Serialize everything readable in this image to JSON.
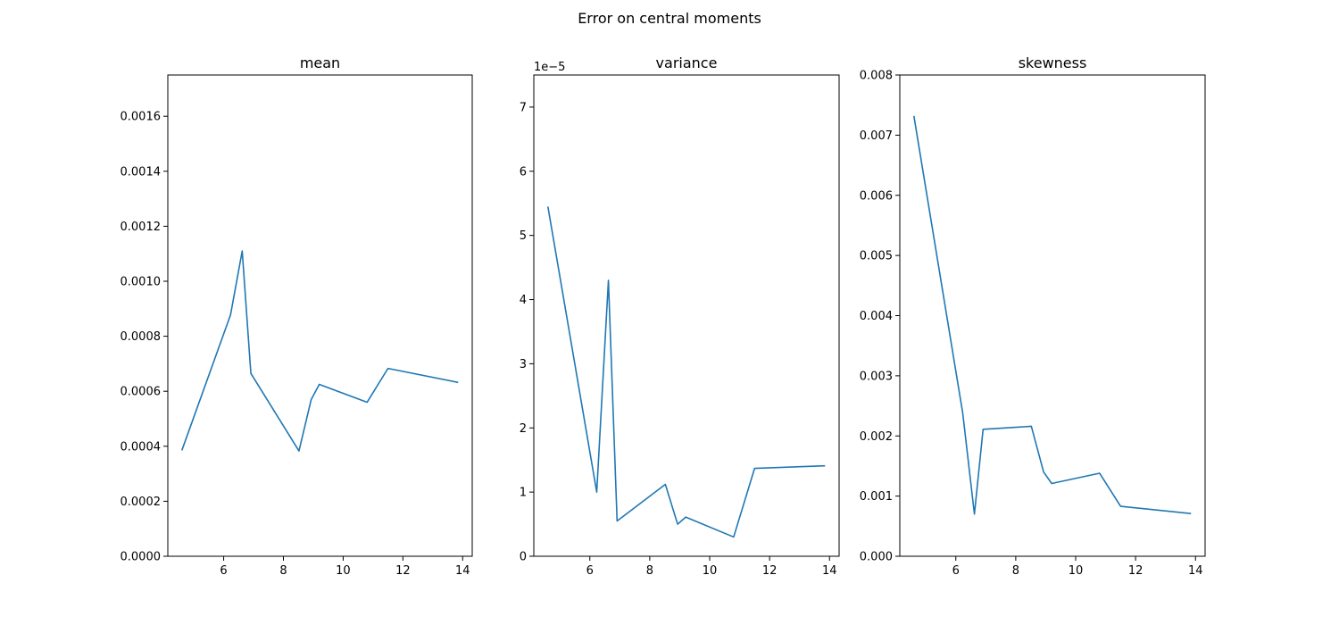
{
  "figure": {
    "suptitle": "Error on central moments",
    "background": "#ffffff",
    "line_color": "#1f77b4"
  },
  "chart_data": [
    {
      "type": "line",
      "title": "mean",
      "xlabel": "",
      "ylabel": "",
      "x": [
        4.6,
        6.23,
        6.62,
        6.91,
        8.52,
        8.93,
        9.2,
        10.8,
        11.5,
        13.85
      ],
      "series": [
        {
          "values": [
            0.000385,
            0.000878,
            0.00111,
            0.000665,
            0.000383,
            0.00057,
            0.000625,
            0.00056,
            0.000683,
            0.000632
          ]
        }
      ],
      "xlim": [
        4.13,
        14.32
      ],
      "ylim": [
        0,
        0.00175
      ],
      "xticks": [
        6,
        8,
        10,
        12,
        14
      ],
      "xtick_labels": [
        "6",
        "8",
        "10",
        "12",
        "14"
      ],
      "yticks": [
        0,
        0.0002,
        0.0004,
        0.0006,
        0.0008,
        0.001,
        0.0012,
        0.0014,
        0.0016
      ],
      "ytick_labels": [
        "0.0000",
        "0.0002",
        "0.0004",
        "0.0006",
        "0.0008",
        "0.0010",
        "0.0012",
        "0.0014",
        "0.0016"
      ],
      "offset_label": "",
      "grid": false,
      "legend": false
    },
    {
      "type": "line",
      "title": "variance",
      "xlabel": "",
      "ylabel": "",
      "x": [
        4.6,
        6.23,
        6.62,
        6.91,
        8.52,
        8.93,
        9.2,
        10.8,
        11.5,
        13.85
      ],
      "series": [
        {
          "values": [
            5.45e-05,
            1e-05,
            4.3e-05,
            5.5e-06,
            1.12e-05,
            5e-06,
            6.1e-06,
            3e-06,
            1.37e-05,
            1.41e-05
          ]
        }
      ],
      "xlim": [
        4.13,
        14.32
      ],
      "ylim": [
        0,
        7.5e-05
      ],
      "yscale_factor": 1e-05,
      "xticks": [
        6,
        8,
        10,
        12,
        14
      ],
      "xtick_labels": [
        "6",
        "8",
        "10",
        "12",
        "14"
      ],
      "yticks": [
        0,
        1e-05,
        2e-05,
        3e-05,
        4e-05,
        5e-05,
        6e-05,
        7e-05
      ],
      "ytick_labels": [
        "0",
        "1",
        "2",
        "3",
        "4",
        "5",
        "6",
        "7"
      ],
      "offset_label": "1e−5",
      "grid": false,
      "legend": false
    },
    {
      "type": "line",
      "title": "skewness",
      "xlabel": "",
      "ylabel": "",
      "x": [
        4.6,
        6.23,
        6.62,
        6.91,
        8.52,
        8.93,
        9.2,
        10.8,
        11.5,
        13.85
      ],
      "series": [
        {
          "values": [
            0.00732,
            0.00238,
            0.0007,
            0.00211,
            0.00216,
            0.0014,
            0.00121,
            0.00138,
            0.00083,
            0.00071
          ]
        }
      ],
      "xlim": [
        4.13,
        14.32
      ],
      "ylim": [
        0,
        0.008
      ],
      "xticks": [
        6,
        8,
        10,
        12,
        14
      ],
      "xtick_labels": [
        "6",
        "8",
        "10",
        "12",
        "14"
      ],
      "yticks": [
        0,
        0.001,
        0.002,
        0.003,
        0.004,
        0.005,
        0.006,
        0.007,
        0.008
      ],
      "ytick_labels": [
        "0.000",
        "0.001",
        "0.002",
        "0.003",
        "0.004",
        "0.005",
        "0.006",
        "0.007",
        "0.008"
      ],
      "offset_label": "",
      "grid": false,
      "legend": false
    }
  ]
}
